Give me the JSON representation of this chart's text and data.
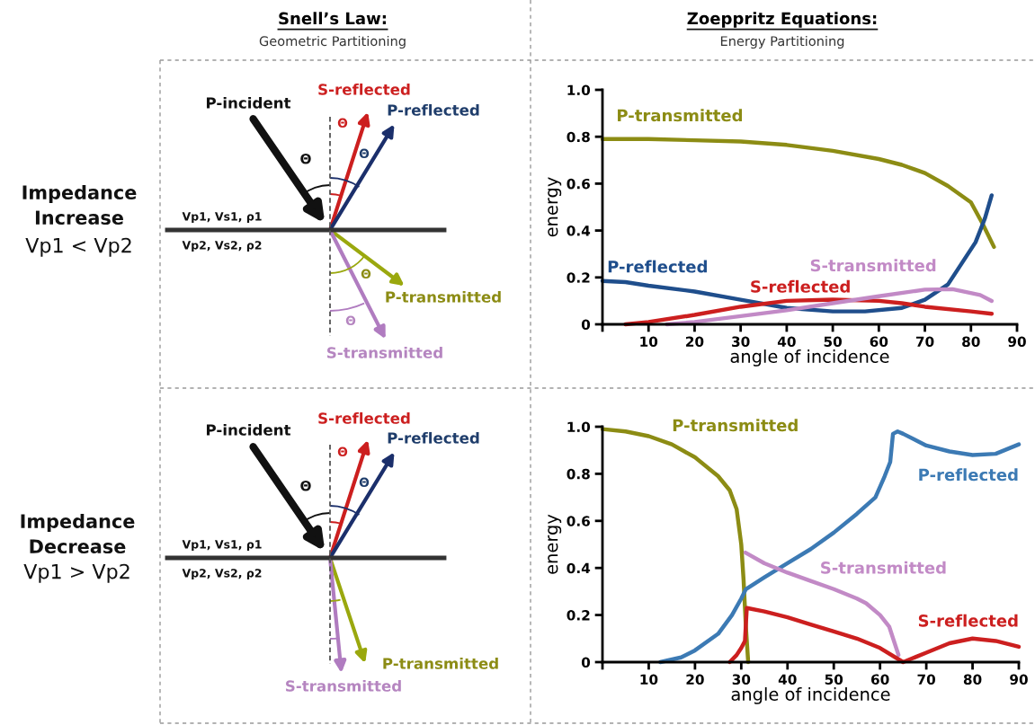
{
  "chart_data": [
    {
      "type": "other",
      "title": "Snell’s Law:",
      "subtitle": "Geometric Partitioning",
      "annotations": [
        "Impedance\nIncrease",
        "Vp1 < Vp2",
        "P-incident",
        "S-reflected",
        "P-reflected",
        "Vp1, Vs1, ρ1",
        "Vp2, Vs2, ρ2",
        "P-transmitted",
        "S-transmitted",
        "Θ",
        "Θ",
        "Θ",
        "Θ",
        "Θ"
      ]
    },
    {
      "type": "line",
      "title": "Zoeppritz Equations:",
      "subtitle": "Energy Partitioning",
      "xlabel": "angle of incidence",
      "ylabel": "energy",
      "xlim": [
        0,
        90
      ],
      "ylim": [
        0,
        1
      ],
      "xticks": [
        {
          "value": 0,
          "label": null
        },
        10,
        20,
        30,
        40,
        50,
        60,
        70,
        80,
        90
      ],
      "yticks": [
        0,
        0.2,
        0.4,
        0.6,
        0.8,
        {
          "value": 1,
          "label": "1.0"
        }
      ],
      "grid": false,
      "legend": false,
      "marker": "none",
      "line_style": "solid",
      "series": [
        {
          "name": "P-transmitted",
          "color": "#8c8c14",
          "x": [
            0,
            10,
            20,
            30,
            40,
            50,
            60,
            65,
            70,
            75,
            80,
            82.5,
            85
          ],
          "values": [
            0.79,
            0.79,
            0.785,
            0.78,
            0.765,
            0.74,
            0.705,
            0.68,
            0.645,
            0.59,
            0.52,
            0.43,
            0.33
          ]
        },
        {
          "name": "P-reflected",
          "color": "#1f4e8c",
          "x": [
            0,
            5,
            10,
            20,
            30,
            40,
            50,
            57,
            65,
            70,
            75,
            78,
            81,
            83,
            84.5
          ],
          "values": [
            0.185,
            0.18,
            0.165,
            0.14,
            0.105,
            0.07,
            0.055,
            0.055,
            0.07,
            0.105,
            0.17,
            0.26,
            0.35,
            0.45,
            0.55
          ]
        },
        {
          "name": "S-reflected",
          "color": "#cc1f1f",
          "x": [
            5,
            10,
            20,
            30,
            40,
            50,
            60,
            65,
            70,
            80,
            84.5
          ],
          "values": [
            0,
            0.01,
            0.04,
            0.075,
            0.1,
            0.105,
            0.1,
            0.09,
            0.075,
            0.055,
            0.045
          ]
        },
        {
          "name": "S-transmitted",
          "color": "#c28ac6",
          "x": [
            14,
            20,
            30,
            40,
            50,
            60,
            70,
            76,
            82,
            84.5
          ],
          "values": [
            0,
            0.01,
            0.035,
            0.06,
            0.09,
            0.12,
            0.148,
            0.15,
            0.125,
            0.1
          ]
        }
      ]
    },
    {
      "type": "other",
      "annotations": [
        "Impedance\nDecrease",
        "Vp1 > Vp2",
        "P-incident",
        "S-reflected",
        "P-reflected",
        "Vp1, Vs1, ρ1",
        "Vp2, Vs2, ρ2",
        "P-transmitted",
        "S-transmitted",
        "Θ",
        "Θ",
        "Θ"
      ]
    },
    {
      "type": "line",
      "xlabel": "angle of incidence",
      "ylabel": "energy",
      "xlim": [
        0,
        90
      ],
      "ylim": [
        0,
        1
      ],
      "xticks": [
        {
          "value": 0,
          "label": null
        },
        10,
        20,
        30,
        40,
        50,
        60,
        70,
        80,
        90
      ],
      "yticks": [
        0,
        0.2,
        0.4,
        0.6,
        0.8,
        {
          "value": 1,
          "label": "1.0"
        }
      ],
      "grid": false,
      "legend": false,
      "marker": "none",
      "line_style": "solid",
      "series": [
        {
          "name": "P-transmitted",
          "color": "#8c8c14",
          "x": [
            0,
            5,
            10,
            15,
            20,
            25,
            27.5,
            29,
            30,
            30.5,
            31,
            31.5
          ],
          "values": [
            0.99,
            0.98,
            0.96,
            0.925,
            0.87,
            0.79,
            0.73,
            0.65,
            0.5,
            0.35,
            0.15,
            0
          ]
        },
        {
          "name": "P-reflected",
          "color": "#3c7ab4",
          "x": [
            12.5,
            17,
            20,
            25,
            28,
            30,
            31,
            35,
            40,
            45,
            50,
            55,
            59,
            61,
            62.2,
            62.8,
            63.8,
            65,
            70,
            75,
            80,
            85,
            90
          ],
          "values": [
            0,
            0.02,
            0.05,
            0.12,
            0.2,
            0.27,
            0.31,
            0.36,
            0.42,
            0.48,
            0.55,
            0.63,
            0.7,
            0.79,
            0.85,
            0.97,
            0.98,
            0.97,
            0.92,
            0.895,
            0.88,
            0.885,
            0.925
          ]
        },
        {
          "name": "S-transmitted",
          "color": "#c28ac6",
          "x": [
            30.9,
            35,
            40,
            45,
            50,
            55,
            57,
            60,
            62,
            64
          ],
          "values": [
            0.465,
            0.42,
            0.38,
            0.345,
            0.31,
            0.27,
            0.25,
            0.2,
            0.15,
            0.03
          ]
        },
        {
          "name": "S-reflected",
          "color": "#cc1f1f",
          "x": [
            27.5,
            29,
            30,
            30.8,
            31.2,
            35,
            40,
            45,
            50,
            55,
            60,
            65,
            70,
            75,
            80,
            85,
            90
          ],
          "values": [
            0,
            0.03,
            0.06,
            0.09,
            0.23,
            0.215,
            0.19,
            0.16,
            0.13,
            0.1,
            0.06,
            0,
            0.04,
            0.08,
            0.1,
            0.09,
            0.065
          ]
        }
      ]
    }
  ]
}
